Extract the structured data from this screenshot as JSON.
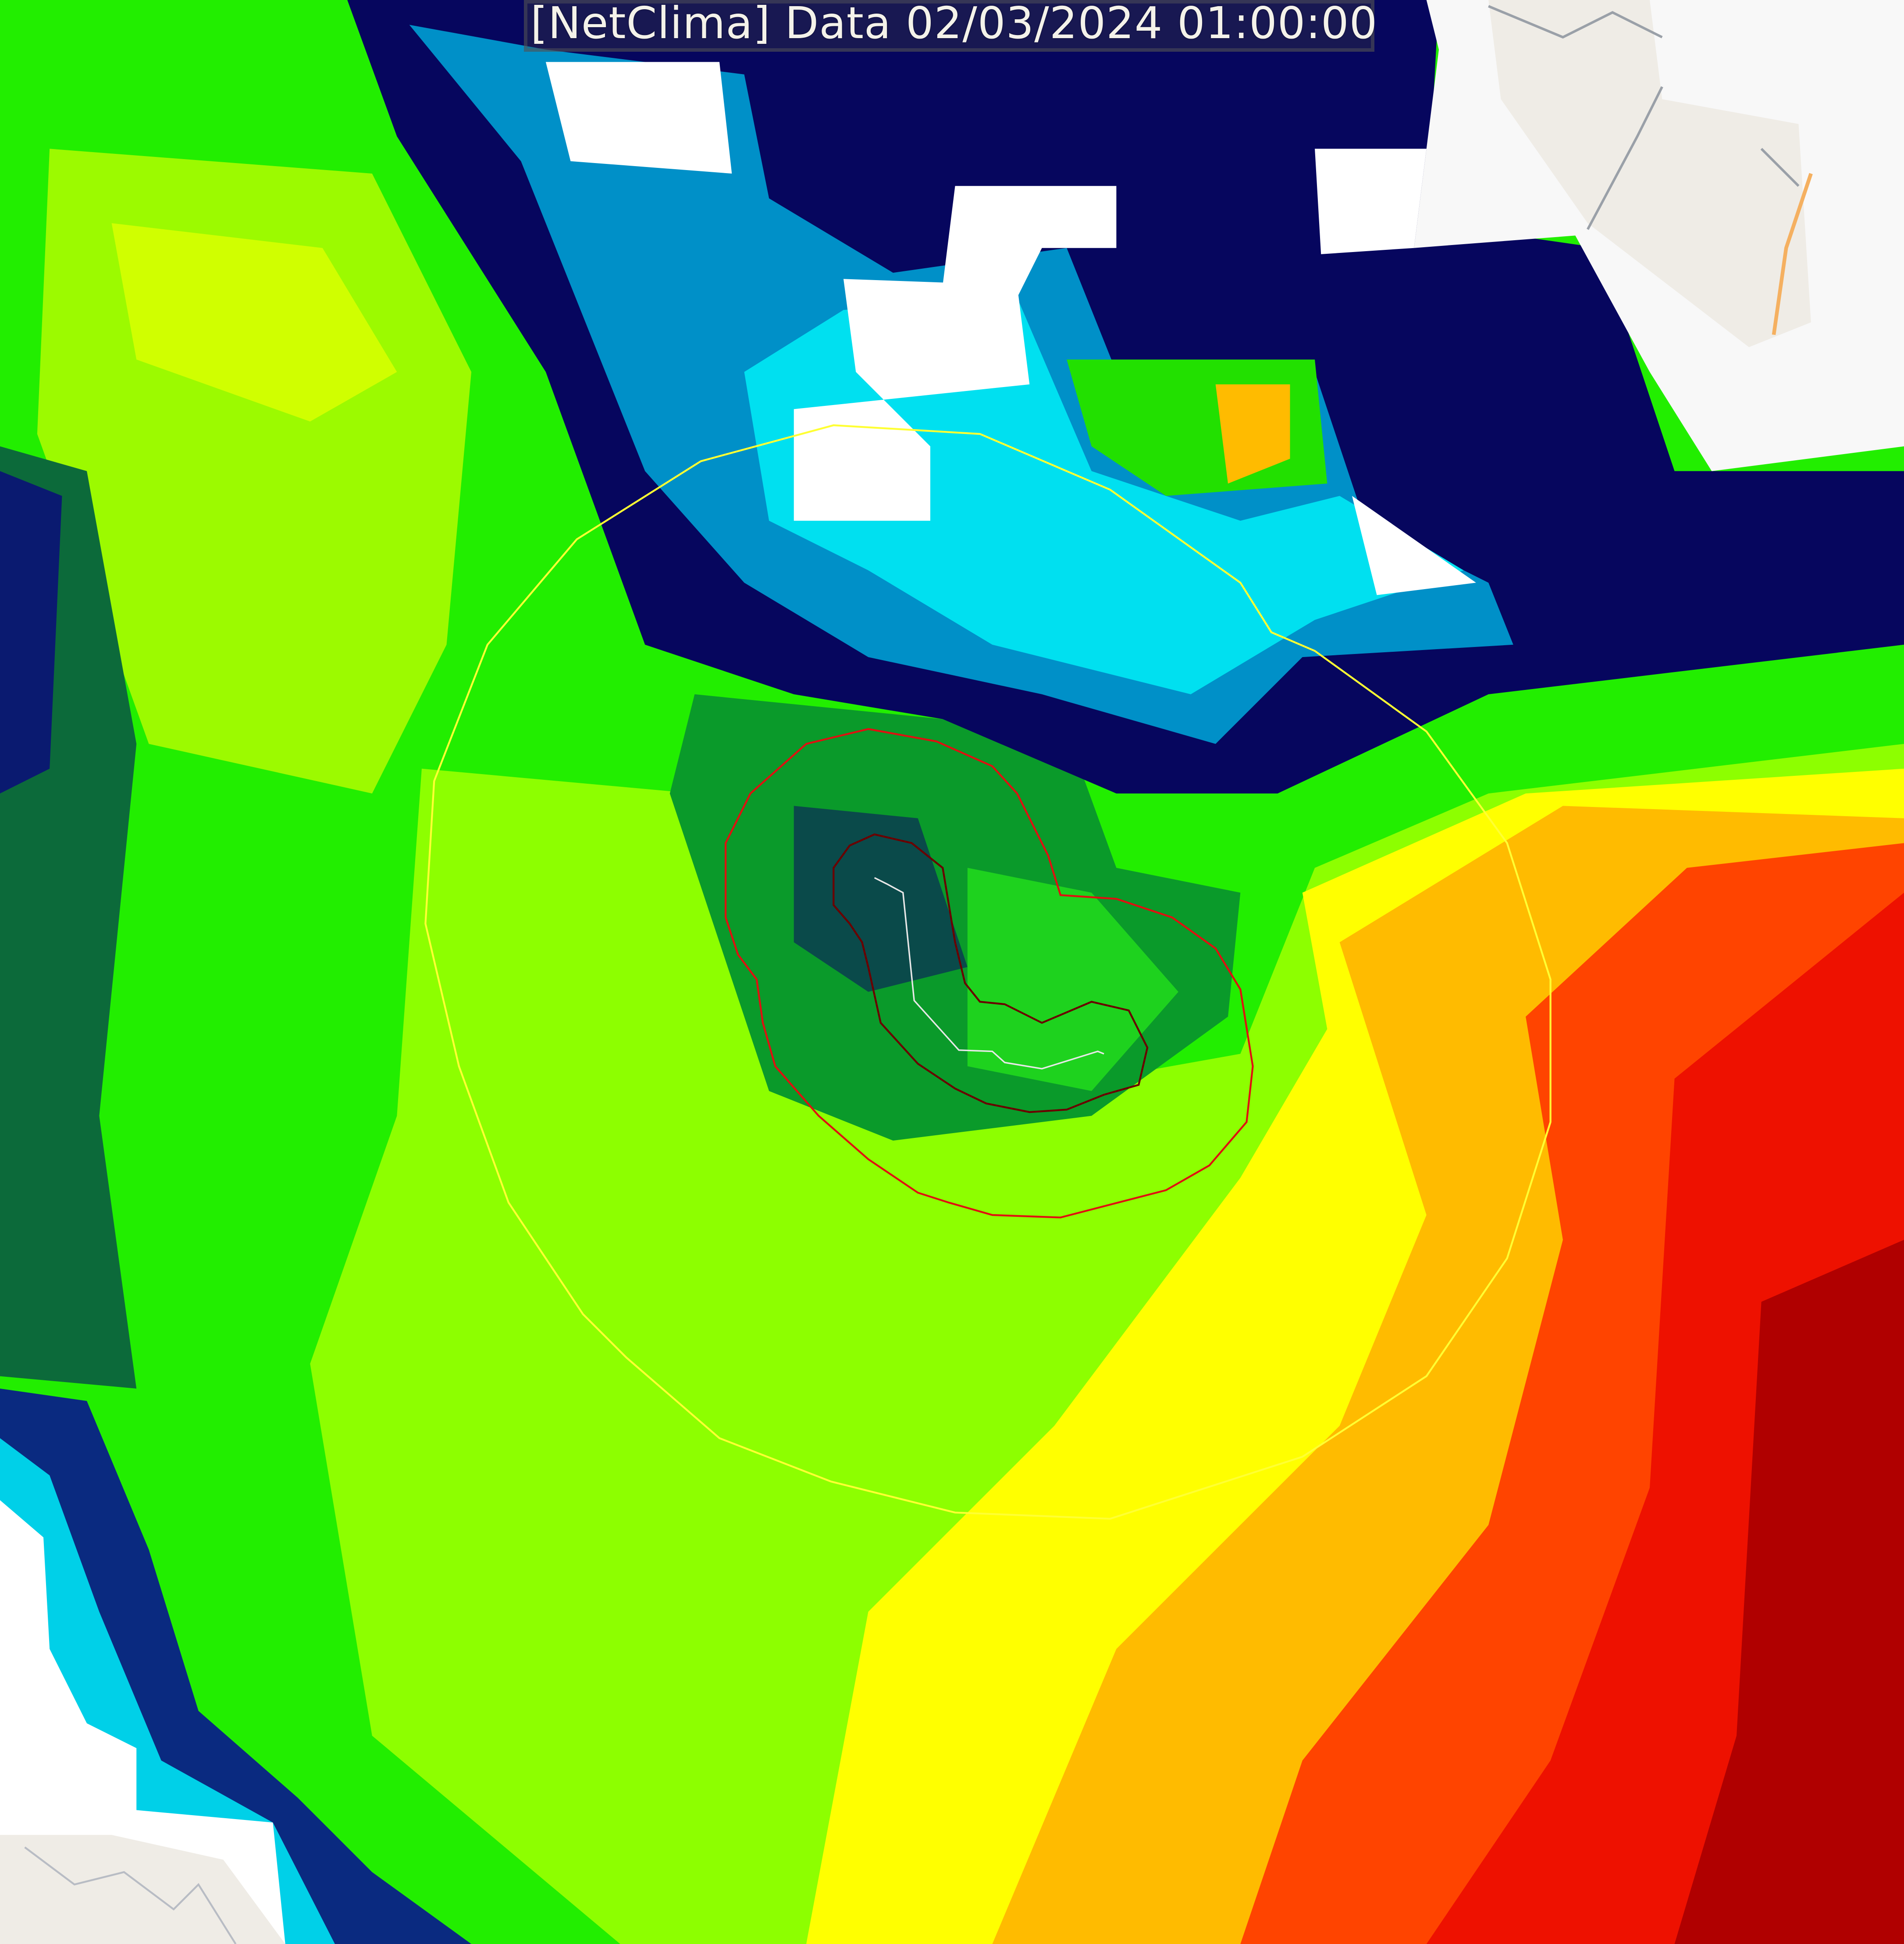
{
  "title": "[NetClima] Data 02/03/2024 01:00:00",
  "colors": {
    "contour_outer": "#ffff33",
    "contour_mid": "#e01010",
    "contour_inner": "#6a0000",
    "track": "#e8e8e8",
    "land": "#efece6",
    "cloud": "#ffffff"
  },
  "layers": [
    "satellite-rainbow-colormap",
    "outer-contour",
    "middle-contour",
    "inner-contour",
    "storm-track"
  ]
}
